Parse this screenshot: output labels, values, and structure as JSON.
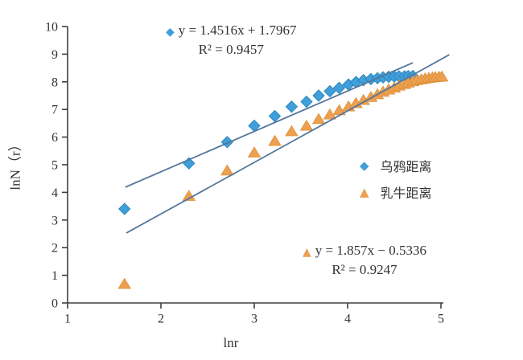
{
  "chart_data": {
    "type": "scatter",
    "title": "",
    "xlabel": "lnr",
    "ylabel": "lnN（r）",
    "xlim": [
      1,
      5
    ],
    "ylim": [
      0,
      10
    ],
    "x_ticks": [
      1,
      2,
      3,
      4,
      5
    ],
    "y_ticks": [
      0,
      1,
      2,
      3,
      4,
      5,
      6,
      7,
      8,
      9,
      10
    ],
    "grid": false,
    "axis_color": "#3f3f3f",
    "text_color": "#333333",
    "series": [
      {
        "name": "乌鸦距离",
        "key": "crow",
        "marker": "diamond",
        "color": "#3F9FDB",
        "edge_color": "#2F86BC",
        "points": [
          [
            1.61,
            3.4
          ],
          [
            2.3,
            5.05
          ],
          [
            2.71,
            5.82
          ],
          [
            3.0,
            6.41
          ],
          [
            3.22,
            6.76
          ],
          [
            3.4,
            7.1
          ],
          [
            3.56,
            7.28
          ],
          [
            3.69,
            7.5
          ],
          [
            3.81,
            7.66
          ],
          [
            3.91,
            7.78
          ],
          [
            4.01,
            7.9
          ],
          [
            4.09,
            7.99
          ],
          [
            4.17,
            8.06
          ],
          [
            4.25,
            8.1
          ],
          [
            4.32,
            8.13
          ],
          [
            4.38,
            8.16
          ],
          [
            4.44,
            8.18
          ],
          [
            4.5,
            8.19
          ],
          [
            4.55,
            8.2
          ],
          [
            4.61,
            8.2
          ],
          [
            4.65,
            8.21
          ],
          [
            4.7,
            8.21
          ]
        ]
      },
      {
        "name": "乳牛距离",
        "key": "cow",
        "marker": "triangle",
        "color": "#EDA04F",
        "edge_color": "#DD8F38",
        "points": [
          [
            1.61,
            0.7
          ],
          [
            2.3,
            3.88
          ],
          [
            2.71,
            4.8
          ],
          [
            3.0,
            5.45
          ],
          [
            3.22,
            5.87
          ],
          [
            3.4,
            6.22
          ],
          [
            3.56,
            6.42
          ],
          [
            3.69,
            6.66
          ],
          [
            3.81,
            6.83
          ],
          [
            3.91,
            6.98
          ],
          [
            4.01,
            7.12
          ],
          [
            4.09,
            7.24
          ],
          [
            4.17,
            7.35
          ],
          [
            4.25,
            7.46
          ],
          [
            4.32,
            7.56
          ],
          [
            4.38,
            7.65
          ],
          [
            4.44,
            7.73
          ],
          [
            4.5,
            7.8
          ],
          [
            4.55,
            7.87
          ],
          [
            4.61,
            7.93
          ],
          [
            4.65,
            7.98
          ],
          [
            4.7,
            8.03
          ],
          [
            4.74,
            8.07
          ],
          [
            4.79,
            8.1
          ],
          [
            4.83,
            8.13
          ],
          [
            4.87,
            8.15
          ],
          [
            4.91,
            8.17
          ],
          [
            4.94,
            8.18
          ],
          [
            4.98,
            8.19
          ],
          [
            5.01,
            8.2
          ]
        ]
      }
    ],
    "trendlines": [
      {
        "for": "crow",
        "equation": "y = 1.4516x + 1.7967",
        "r2": "R² = 0.9457",
        "color": "#54779D",
        "x1": 1.62,
        "y1": 4.19,
        "x2": 4.7,
        "y2": 8.69
      },
      {
        "for": "cow",
        "equation": "y = 1.857x − 0.5336",
        "r2": "R² = 0.9247",
        "color": "#54779D",
        "x1": 1.63,
        "y1": 2.53,
        "x2": 5.09,
        "y2": 8.98
      }
    ],
    "legend_position": "right-middle",
    "legend": {
      "items": [
        {
          "label": "乌鸦距离",
          "marker": "diamond",
          "color": "#3F9FDB"
        },
        {
          "label": "乳牛距离",
          "marker": "triangle",
          "color": "#EDA04F"
        }
      ]
    }
  }
}
